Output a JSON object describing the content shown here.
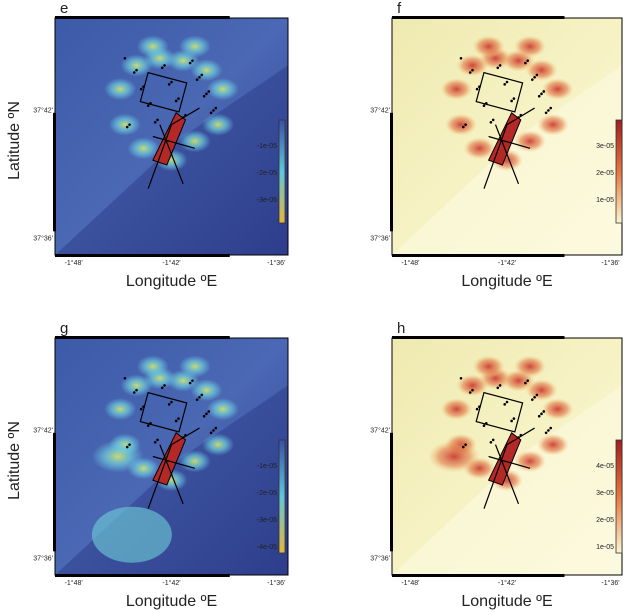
{
  "panels": [
    {
      "label": "e",
      "x_ticks": [
        "-1°48'",
        "-1°42'",
        "-1°36'"
      ],
      "y_ticks": [
        "37°42'",
        "37°36'"
      ],
      "colorbar_ticks": [
        "-1e-05",
        "-2e-05",
        "-3e-05"
      ],
      "x_label": "Longitude ºE",
      "y_label": "Latitude ºN"
    },
    {
      "label": "f",
      "x_ticks": [
        "-1°48'",
        "-1°42'",
        "-1°36'"
      ],
      "y_ticks": [
        "37°42'",
        "37°36'"
      ],
      "colorbar_ticks": [
        "3e-05",
        "2e-05",
        "1e-05"
      ],
      "x_label": "Longitude ºE"
    },
    {
      "label": "g",
      "x_ticks": [
        "-1°48'",
        "-1°42'",
        "-1°36'"
      ],
      "y_ticks": [
        "37°42'",
        "37°36'"
      ],
      "colorbar_ticks": [
        "-1e-05",
        "-2e-05",
        "-3e-05",
        "-4e-05"
      ],
      "x_label": "Longitude ºE",
      "y_label": "Latitude ºN"
    },
    {
      "label": "h",
      "x_ticks": [
        "-1°48'",
        "-1°42'",
        "-1°36'"
      ],
      "y_ticks": [
        "37°42'",
        "37°36'"
      ],
      "colorbar_ticks": [
        "4e-05",
        "3e-05",
        "2e-05",
        "1e-05"
      ],
      "x_label": "Longitude ºE"
    }
  ]
}
